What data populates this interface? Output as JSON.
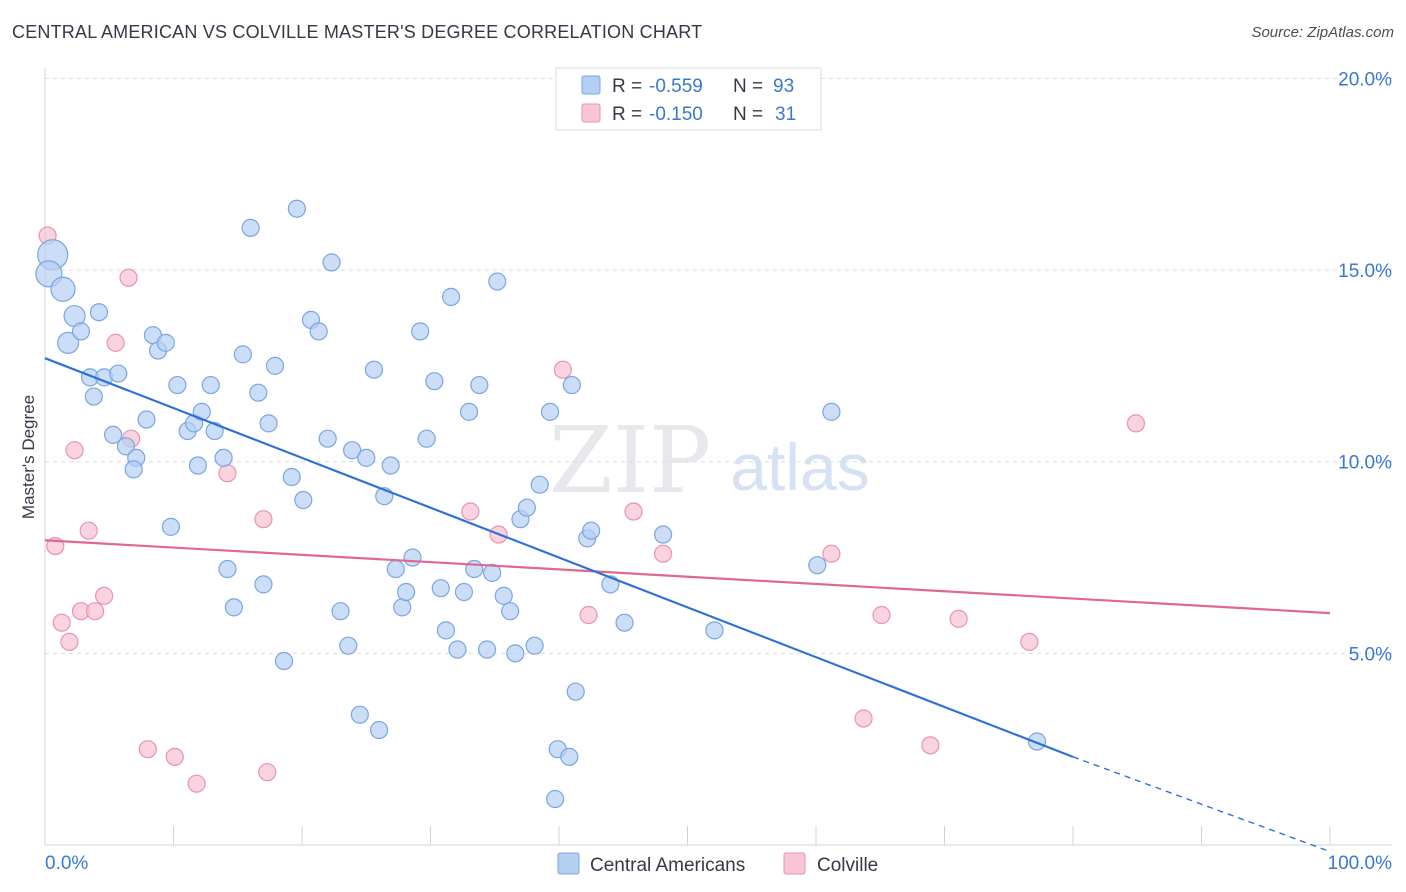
{
  "header": {
    "title": "CENTRAL AMERICAN VS COLVILLE MASTER'S DEGREE CORRELATION CHART",
    "source": "Source: ZipAtlas.com"
  },
  "watermark": {
    "zip": "ZIP",
    "atlas": "atlas"
  },
  "colors": {
    "blue_fill": "#b5cff3",
    "blue_stroke": "#7aa6e0",
    "blue_line": "#2c72d6",
    "pink_fill": "#f7c5d4",
    "pink_stroke": "#e993ad",
    "pink_line": "#e0678f",
    "tick_label": "#3a78d0",
    "grid": "#d9dde3"
  },
  "chart_data": {
    "type": "scatter",
    "ylabel": "Master's Degree",
    "xlim": [
      0,
      100
    ],
    "ylim": [
      0,
      20
    ],
    "x_tick_labels": [
      "0.0%",
      "100.0%"
    ],
    "y_ticks": [
      5,
      10,
      15,
      20
    ],
    "y_tick_labels": [
      "5.0%",
      "10.0%",
      "15.0%",
      "20.0%"
    ],
    "grid": "horizontal dashed",
    "legend_top": [
      {
        "r_label": "R = ",
        "r_value": "-0.559",
        "n_label": "N = ",
        "n_value": "93",
        "series": "Central Americans"
      },
      {
        "r_label": "R = ",
        "r_value": "-0.150",
        "n_label": "N = ",
        "n_value": "31",
        "series": "Colville"
      }
    ],
    "series": [
      {
        "name": "Central Americans",
        "trend": {
          "x1": 0,
          "y1": 12.7,
          "x2": 80,
          "y2": 2.3,
          "dash_to_x": 100,
          "dash_to_y": -0.25
        },
        "points": [
          [
            0.6,
            15.4
          ],
          [
            0.3,
            14.9
          ],
          [
            1.4,
            14.5
          ],
          [
            2.3,
            13.8
          ],
          [
            1.8,
            13.1
          ],
          [
            2.8,
            13.4
          ],
          [
            4.2,
            13.9
          ],
          [
            3.5,
            12.2
          ],
          [
            4.6,
            12.2
          ],
          [
            5.7,
            12.3
          ],
          [
            3.8,
            11.7
          ],
          [
            5.3,
            10.7
          ],
          [
            6.3,
            10.4
          ],
          [
            7.1,
            10.1
          ],
          [
            6.9,
            9.8
          ],
          [
            7.9,
            11.1
          ],
          [
            8.4,
            13.3
          ],
          [
            8.8,
            12.9
          ],
          [
            9.4,
            13.1
          ],
          [
            10.3,
            12.0
          ],
          [
            11.1,
            10.8
          ],
          [
            11.6,
            11.0
          ],
          [
            12.2,
            11.3
          ],
          [
            11.9,
            9.9
          ],
          [
            12.9,
            12.0
          ],
          [
            13.2,
            10.8
          ],
          [
            13.9,
            10.1
          ],
          [
            9.8,
            8.3
          ],
          [
            14.2,
            7.2
          ],
          [
            14.7,
            6.2
          ],
          [
            15.4,
            12.8
          ],
          [
            16.0,
            16.1
          ],
          [
            16.6,
            11.8
          ],
          [
            17.0,
            6.8
          ],
          [
            17.4,
            11.0
          ],
          [
            17.9,
            12.5
          ],
          [
            18.6,
            4.8
          ],
          [
            19.2,
            9.6
          ],
          [
            19.6,
            16.6
          ],
          [
            20.1,
            9.0
          ],
          [
            20.7,
            13.7
          ],
          [
            21.3,
            13.4
          ],
          [
            22.0,
            10.6
          ],
          [
            22.3,
            15.2
          ],
          [
            23.0,
            6.1
          ],
          [
            23.6,
            5.2
          ],
          [
            23.9,
            10.3
          ],
          [
            24.5,
            3.4
          ],
          [
            25.0,
            10.1
          ],
          [
            25.6,
            12.4
          ],
          [
            26.0,
            3.0
          ],
          [
            26.4,
            9.1
          ],
          [
            26.9,
            9.9
          ],
          [
            27.3,
            7.2
          ],
          [
            27.8,
            6.2
          ],
          [
            28.1,
            6.6
          ],
          [
            28.6,
            7.5
          ],
          [
            29.2,
            13.4
          ],
          [
            29.7,
            10.6
          ],
          [
            30.3,
            12.1
          ],
          [
            30.8,
            6.7
          ],
          [
            31.2,
            5.6
          ],
          [
            31.6,
            14.3
          ],
          [
            32.1,
            5.1
          ],
          [
            32.6,
            6.6
          ],
          [
            33.0,
            11.3
          ],
          [
            33.4,
            7.2
          ],
          [
            33.8,
            12.0
          ],
          [
            34.4,
            5.1
          ],
          [
            34.8,
            7.1
          ],
          [
            35.2,
            14.7
          ],
          [
            35.7,
            6.5
          ],
          [
            36.2,
            6.1
          ],
          [
            36.6,
            5.0
          ],
          [
            37.0,
            8.5
          ],
          [
            37.5,
            8.8
          ],
          [
            38.1,
            5.2
          ],
          [
            38.5,
            9.4
          ],
          [
            39.3,
            11.3
          ],
          [
            39.7,
            1.2
          ],
          [
            39.9,
            2.5
          ],
          [
            40.8,
            2.3
          ],
          [
            41.0,
            12.0
          ],
          [
            41.3,
            4.0
          ],
          [
            42.2,
            8.0
          ],
          [
            42.5,
            8.2
          ],
          [
            44.0,
            6.8
          ],
          [
            45.1,
            5.8
          ],
          [
            48.1,
            8.1
          ],
          [
            52.1,
            5.6
          ],
          [
            60.1,
            7.3
          ],
          [
            61.2,
            11.3
          ],
          [
            77.2,
            2.7
          ]
        ]
      },
      {
        "name": "Colville",
        "trend": {
          "x1": 0,
          "y1": 7.95,
          "x2": 100,
          "y2": 6.05
        },
        "points": [
          [
            0.2,
            15.9
          ],
          [
            0.8,
            7.8
          ],
          [
            1.3,
            5.8
          ],
          [
            1.9,
            5.3
          ],
          [
            2.3,
            10.3
          ],
          [
            2.8,
            6.1
          ],
          [
            3.4,
            8.2
          ],
          [
            3.9,
            6.1
          ],
          [
            4.6,
            6.5
          ],
          [
            5.5,
            13.1
          ],
          [
            6.5,
            14.8
          ],
          [
            6.7,
            10.6
          ],
          [
            8.0,
            2.5
          ],
          [
            10.1,
            2.3
          ],
          [
            11.8,
            1.6
          ],
          [
            14.2,
            9.7
          ],
          [
            17.0,
            8.5
          ],
          [
            17.3,
            1.9
          ],
          [
            33.1,
            8.7
          ],
          [
            35.3,
            8.1
          ],
          [
            40.3,
            12.4
          ],
          [
            42.3,
            6.0
          ],
          [
            45.8,
            8.7
          ],
          [
            48.1,
            7.6
          ],
          [
            61.2,
            7.6
          ],
          [
            63.7,
            3.3
          ],
          [
            65.1,
            6.0
          ],
          [
            68.9,
            2.6
          ],
          [
            71.1,
            5.9
          ],
          [
            76.6,
            5.3
          ],
          [
            84.9,
            11.0
          ]
        ]
      }
    ],
    "legend_bottom": [
      "Central Americans",
      "Colville"
    ]
  }
}
